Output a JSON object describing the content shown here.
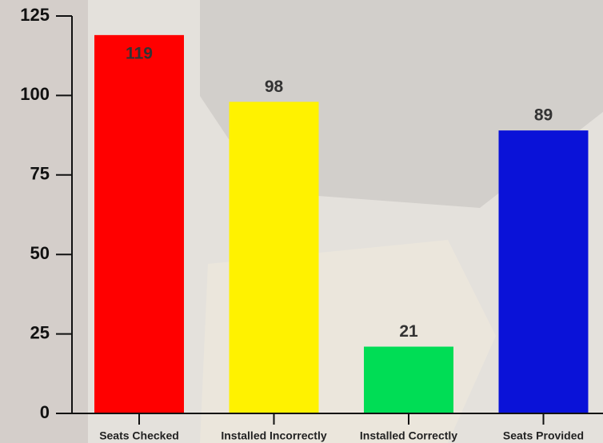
{
  "chart_data": {
    "type": "bar",
    "categories": [
      "Seats Checked",
      "Installed Incorrectly",
      "Installed Correctly",
      "Seats Provided"
    ],
    "values": [
      119,
      98,
      21,
      89
    ],
    "colors": [
      "#ff0000",
      "#fff200",
      "#00dd55",
      "#0a12d8"
    ],
    "ylim": [
      0,
      125
    ],
    "yticks": [
      0,
      25,
      50,
      75,
      100,
      125
    ]
  }
}
